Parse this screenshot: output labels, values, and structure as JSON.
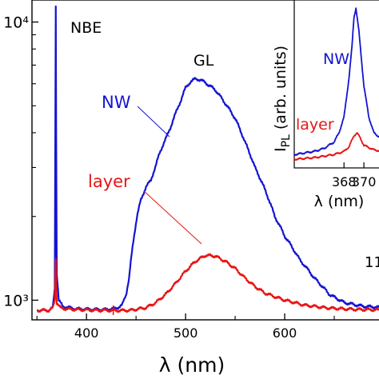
{
  "chart_data": [
    {
      "type": "line",
      "xlabel": "λ (nm)",
      "ylabel": "",
      "y_scale": "log",
      "xlim": [
        345,
        700
      ],
      "ylim": [
        850,
        12000
      ],
      "x_ticks": [
        400,
        500,
        600
      ],
      "x_tick_labels": [
        "400",
        "500",
        "600"
      ],
      "y_ticks": [
        1000,
        10000
      ],
      "y_tick_labels": [
        "10³",
        "10⁴"
      ],
      "annotations": {
        "peak_label": "NBE",
        "band_label": "GL",
        "right_fragment": "11"
      },
      "series": [
        {
          "name": "NW",
          "color": "#1414d2",
          "points": [
            [
              350,
              920
            ],
            [
              362,
              920
            ],
            [
              366,
              940
            ],
            [
              368,
              1100
            ],
            [
              368.6,
              4500
            ],
            [
              369,
              11500
            ],
            [
              369.4,
              4000
            ],
            [
              370,
              1250
            ],
            [
              372,
              1000
            ],
            [
              376,
              950
            ],
            [
              390,
              930
            ],
            [
              420,
              925
            ],
            [
              430,
              935
            ],
            [
              436,
              960
            ],
            [
              440,
              1050
            ],
            [
              443,
              1200
            ],
            [
              447,
              1600
            ],
            [
              451,
              2000
            ],
            [
              455,
              2300
            ],
            [
              460,
              2550
            ],
            [
              465,
              2700
            ],
            [
              470,
              3050
            ],
            [
              474,
              3400
            ],
            [
              480,
              3800
            ],
            [
              485,
              4200
            ],
            [
              490,
              4700
            ],
            [
              495,
              5200
            ],
            [
              500,
              5800
            ],
            [
              505,
              6100
            ],
            [
              510,
              6250
            ],
            [
              515,
              6200
            ],
            [
              520,
              6050
            ],
            [
              530,
              5700
            ],
            [
              540,
              5100
            ],
            [
              550,
              4500
            ],
            [
              560,
              3700
            ],
            [
              570,
              3000
            ],
            [
              580,
              2500
            ],
            [
              590,
              2000
            ],
            [
              600,
              1700
            ],
            [
              615,
              1400
            ],
            [
              630,
              1200
            ],
            [
              645,
              1050
            ],
            [
              660,
              980
            ],
            [
              680,
              950
            ],
            [
              700,
              940
            ]
          ]
        },
        {
          "name": "layer",
          "color": "#e81414",
          "points": [
            [
              350,
              920
            ],
            [
              362,
              920
            ],
            [
              366,
              935
            ],
            [
              368,
              1000
            ],
            [
              368.6,
              1200
            ],
            [
              369,
              1420
            ],
            [
              369.4,
              1150
            ],
            [
              370,
              980
            ],
            [
              374,
              935
            ],
            [
              390,
              925
            ],
            [
              410,
              920
            ],
            [
              430,
              918
            ],
            [
              445,
              920
            ],
            [
              460,
              940
            ],
            [
              470,
              980
            ],
            [
              480,
              1050
            ],
            [
              490,
              1150
            ],
            [
              500,
              1270
            ],
            [
              510,
              1380
            ],
            [
              520,
              1450
            ],
            [
              530,
              1440
            ],
            [
              540,
              1380
            ],
            [
              550,
              1300
            ],
            [
              560,
              1200
            ],
            [
              570,
              1120
            ],
            [
              580,
              1060
            ],
            [
              600,
              1000
            ],
            [
              620,
              960
            ],
            [
              640,
              940
            ],
            [
              660,
              930
            ],
            [
              680,
              925
            ],
            [
              700,
              922
            ]
          ]
        }
      ]
    },
    {
      "type": "line",
      "ylabel": "I_PL (arb. units)",
      "ylabel_main": "I",
      "ylabel_sub": "PL",
      "ylabel_rest": " (arb. units)",
      "xlabel": "λ (nm)",
      "xlim": [
        363,
        372
      ],
      "ylim": [
        0,
        1
      ],
      "x_ticks": [
        368,
        370
      ],
      "x_tick_labels": [
        "368",
        "370"
      ],
      "series": [
        {
          "name": "NW",
          "color": "#1414d2",
          "points": [
            [
              363,
              0.06
            ],
            [
              364,
              0.07
            ],
            [
              365,
              0.08
            ],
            [
              366,
              0.1
            ],
            [
              367,
              0.14
            ],
            [
              367.5,
              0.2
            ],
            [
              368,
              0.3
            ],
            [
              368.5,
              0.55
            ],
            [
              368.8,
              0.75
            ],
            [
              369,
              0.94
            ],
            [
              369.2,
              1.0
            ],
            [
              369.5,
              0.85
            ],
            [
              370,
              0.5
            ],
            [
              370.5,
              0.3
            ],
            [
              371,
              0.2
            ],
            [
              372,
              0.15
            ]
          ]
        },
        {
          "name": "layer",
          "color": "#e81414",
          "points": [
            [
              363,
              0.03
            ],
            [
              364,
              0.035
            ],
            [
              365,
              0.04
            ],
            [
              366,
              0.05
            ],
            [
              367,
              0.06
            ],
            [
              368,
              0.08
            ],
            [
              368.5,
              0.11
            ],
            [
              369,
              0.18
            ],
            [
              369.3,
              0.2
            ],
            [
              369.6,
              0.17
            ],
            [
              370,
              0.12
            ],
            [
              371,
              0.09
            ],
            [
              372,
              0.08
            ]
          ]
        }
      ]
    }
  ]
}
